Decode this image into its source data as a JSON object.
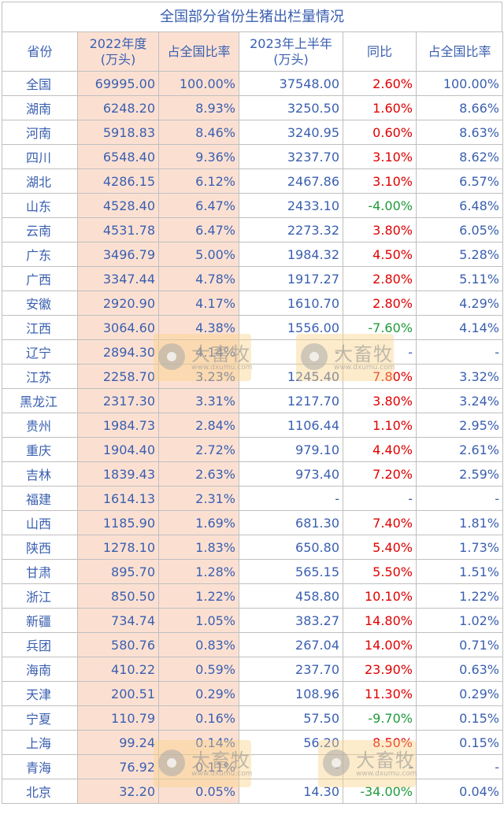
{
  "title": "全国部分省份生猪出栏量情况",
  "headers": [
    "省份",
    "2022年度\n(万头)",
    "占全国比率",
    "2023年上半年\n(万头)",
    "同比",
    "占全国比率"
  ],
  "rows": [
    [
      "全国",
      "69995.00",
      "100.00%",
      "37548.00",
      "2.60%",
      "100.00%"
    ],
    [
      "湖南",
      "6248.20",
      "8.93%",
      "3250.50",
      "1.60%",
      "8.66%"
    ],
    [
      "河南",
      "5918.83",
      "8.46%",
      "3240.95",
      "0.60%",
      "8.63%"
    ],
    [
      "四川",
      "6548.40",
      "9.36%",
      "3237.70",
      "3.10%",
      "8.62%"
    ],
    [
      "湖北",
      "4286.15",
      "6.12%",
      "2467.86",
      "3.10%",
      "6.57%"
    ],
    [
      "山东",
      "4528.40",
      "6.47%",
      "2433.10",
      "-4.00%",
      "6.48%"
    ],
    [
      "云南",
      "4531.78",
      "6.47%",
      "2273.32",
      "3.80%",
      "6.05%"
    ],
    [
      "广东",
      "3496.79",
      "5.00%",
      "1984.32",
      "4.50%",
      "5.28%"
    ],
    [
      "广西",
      "3347.44",
      "4.78%",
      "1917.27",
      "2.80%",
      "5.11%"
    ],
    [
      "安徽",
      "2920.90",
      "4.17%",
      "1610.70",
      "2.80%",
      "4.29%"
    ],
    [
      "江西",
      "3064.60",
      "4.38%",
      "1556.00",
      "-7.60%",
      "4.14%"
    ],
    [
      "辽宁",
      "2894.30",
      "4.14%",
      "-",
      "-",
      "-"
    ],
    [
      "江苏",
      "2258.70",
      "3.23%",
      "1245.40",
      "7.80%",
      "3.32%"
    ],
    [
      "黑龙江",
      "2317.30",
      "3.31%",
      "1217.70",
      "3.80%",
      "3.24%"
    ],
    [
      "贵州",
      "1984.73",
      "2.84%",
      "1106.44",
      "1.10%",
      "2.95%"
    ],
    [
      "重庆",
      "1904.40",
      "2.72%",
      "979.10",
      "4.40%",
      "2.61%"
    ],
    [
      "吉林",
      "1839.43",
      "2.63%",
      "973.40",
      "7.20%",
      "2.59%"
    ],
    [
      "福建",
      "1614.13",
      "2.31%",
      "-",
      "-",
      "-"
    ],
    [
      "山西",
      "1185.90",
      "1.69%",
      "681.30",
      "7.40%",
      "1.81%"
    ],
    [
      "陕西",
      "1278.10",
      "1.83%",
      "650.80",
      "5.40%",
      "1.73%"
    ],
    [
      "甘肃",
      "895.70",
      "1.28%",
      "565.15",
      "5.50%",
      "1.51%"
    ],
    [
      "浙江",
      "850.50",
      "1.22%",
      "458.80",
      "10.10%",
      "1.22%"
    ],
    [
      "新疆",
      "734.74",
      "1.05%",
      "383.27",
      "14.80%",
      "1.02%"
    ],
    [
      "兵团",
      "580.76",
      "0.83%",
      "267.04",
      "14.00%",
      "0.71%"
    ],
    [
      "海南",
      "410.22",
      "0.59%",
      "237.70",
      "23.90%",
      "0.63%"
    ],
    [
      "天津",
      "200.51",
      "0.29%",
      "108.96",
      "11.30%",
      "0.29%"
    ],
    [
      "宁夏",
      "110.79",
      "0.16%",
      "57.50",
      "-9.70%",
      "0.15%"
    ],
    [
      "上海",
      "99.24",
      "0.14%",
      "56.20",
      "8.50%",
      "0.15%"
    ],
    [
      "青海",
      "76.92",
      "0.11%",
      "-",
      "-",
      "-"
    ],
    [
      "北京",
      "32.20",
      "0.05%",
      "14.30",
      "-34.00%",
      "0.04%"
    ]
  ],
  "colors": {
    "text": "#3a5fb0",
    "positive": "#e00000",
    "negative": "#1f9a3a",
    "highlight": "#fbe0d2",
    "border": "#bfbfbf"
  },
  "watermark": {
    "text": "大畜牧",
    "url": "www.dxumu.com"
  }
}
